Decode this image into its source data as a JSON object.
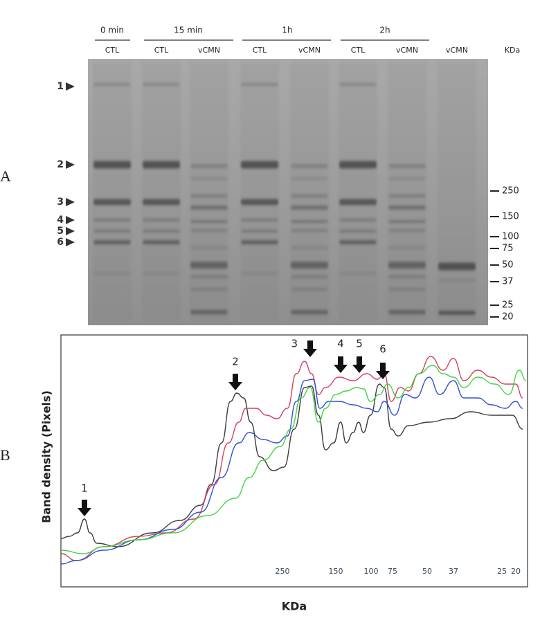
{
  "panel_labels": [
    "A",
    "B"
  ],
  "gel": {
    "time_headers": [
      "0 min",
      "15 min",
      "1h",
      "2h"
    ],
    "lane_labels": [
      "CTL",
      "CTL",
      "vCMN",
      "CTL",
      "vCMN",
      "CTL",
      "vCMN",
      "vCMN"
    ],
    "marker_unit": "KDa",
    "band_markers": [
      "1",
      "2",
      "3",
      "4",
      "5",
      "6"
    ],
    "size_markers": [
      "250",
      "150",
      "100",
      "75",
      "50",
      "37",
      "25",
      "20"
    ]
  },
  "density_plot": {
    "y_label": "Band density (Pixels)",
    "x_label": "KDa",
    "x_tick_labels": [
      "250",
      "150",
      "100",
      "75",
      "50",
      "37",
      "25",
      "20"
    ],
    "peak_labels": [
      "1",
      "2",
      "3",
      "4",
      "5",
      "6"
    ]
  }
}
